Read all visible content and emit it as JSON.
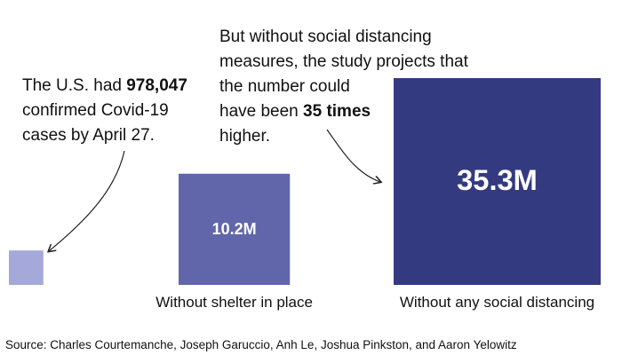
{
  "chart_data": {
    "type": "proportional-area",
    "categories": [
      null,
      "Without shelter in place",
      "Without any social distancing"
    ],
    "values": [
      978047,
      10200000,
      35300000
    ],
    "value_labels": [
      null,
      "10.2M",
      "35.3M"
    ],
    "colors": [
      "#a4a9d9",
      "#6166ab",
      "#343a80"
    ],
    "annotations": [
      {
        "lines": [
          [
            {
              "text": "The U.S. had "
            },
            {
              "text": "978,047",
              "bold": true
            }
          ],
          [
            {
              "text": "confirmed Covid-19"
            }
          ],
          [
            {
              "text": "cases by April 27."
            }
          ]
        ]
      },
      {
        "lines": [
          [
            {
              "text": "But without social distancing"
            }
          ],
          [
            {
              "text": "measures, the study projects that"
            }
          ],
          [
            {
              "text": "the number could"
            }
          ],
          [
            {
              "text": "have been "
            },
            {
              "text": "35 times",
              "bold": true
            }
          ],
          [
            {
              "text": "higher."
            }
          ]
        ]
      }
    ],
    "source": "Source: Charles Courtemanche, Joseph Garuccio, Anh Le, Joshua Pinkston, and Aaron Yelowitz"
  }
}
